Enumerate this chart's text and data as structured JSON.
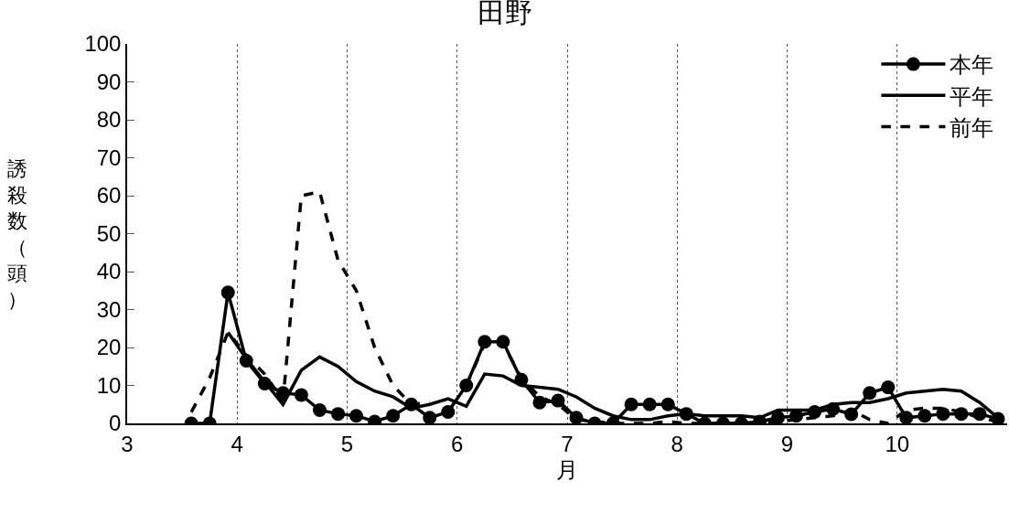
{
  "chart_data": {
    "type": "line",
    "title": "田野",
    "xlabel": "月",
    "ylabel": "誘殺数（頭）",
    "x": [
      3.583,
      3.75,
      3.917,
      4.083,
      4.25,
      4.417,
      4.583,
      4.75,
      4.917,
      5.083,
      5.25,
      5.417,
      5.583,
      5.75,
      5.917,
      6.083,
      6.25,
      6.417,
      6.583,
      6.75,
      6.917,
      7.083,
      7.25,
      7.417,
      7.583,
      7.75,
      7.917,
      8.083,
      8.25,
      8.417,
      8.583,
      8.75,
      8.917,
      9.083,
      9.25,
      9.417,
      9.583,
      9.75,
      9.917,
      10.083,
      10.25,
      10.417,
      10.583,
      10.75,
      10.917
    ],
    "series": [
      {
        "name": "本年",
        "color": "#000000",
        "marker": "circle",
        "line_style": "solid",
        "values": [
          0,
          0,
          34.5,
          16.5,
          10.5,
          8,
          7.5,
          3.5,
          2.5,
          2,
          0.5,
          2,
          5,
          1.5,
          3,
          10,
          21.5,
          21.5,
          11.5,
          5.5,
          6,
          1.5,
          0,
          0,
          5,
          5,
          5,
          2.5,
          0,
          0,
          0,
          0.5,
          1.5,
          2,
          3,
          3.8,
          2.4,
          8,
          9.5,
          1.5,
          2,
          2.5,
          2.5,
          2.5,
          1.2
        ]
      },
      {
        "name": "平年",
        "color": "#000000",
        "marker": "none",
        "line_style": "solid",
        "values": [
          null,
          null,
          24,
          17,
          11,
          5,
          14,
          17.5,
          15,
          11,
          8.5,
          7,
          4,
          5,
          6.5,
          4.5,
          13,
          12.5,
          10,
          9.5,
          9,
          7,
          4,
          2,
          1,
          1,
          2,
          2.5,
          2,
          2,
          2,
          1.5,
          3.5,
          3.5,
          3.5,
          5,
          5.5,
          5.5,
          6.5,
          8,
          8.5,
          9,
          8.5,
          5.5,
          1.5
        ]
      },
      {
        "name": "前年",
        "color": "#000000",
        "marker": "none",
        "line_style": "dashed",
        "values": [
          3,
          12,
          24,
          18,
          13,
          6,
          60,
          61,
          43,
          35,
          20,
          10,
          5,
          5.5,
          null,
          10,
          21,
          21,
          12,
          7,
          5,
          1,
          0.5,
          0,
          0,
          0,
          0.5,
          0,
          0,
          0,
          0,
          0,
          0.5,
          1,
          1.5,
          2,
          3.5,
          1,
          0,
          3.5,
          4,
          4,
          3,
          1.5,
          0.5
        ]
      }
    ],
    "xlim": [
      3,
      11
    ],
    "xticks": [
      3,
      4,
      5,
      6,
      7,
      8,
      9,
      10
    ],
    "ylim": [
      0,
      100
    ],
    "yticks": [
      0,
      10,
      20,
      30,
      40,
      50,
      60,
      70,
      80,
      90,
      100
    ],
    "grid": "x",
    "legend": "top right"
  }
}
